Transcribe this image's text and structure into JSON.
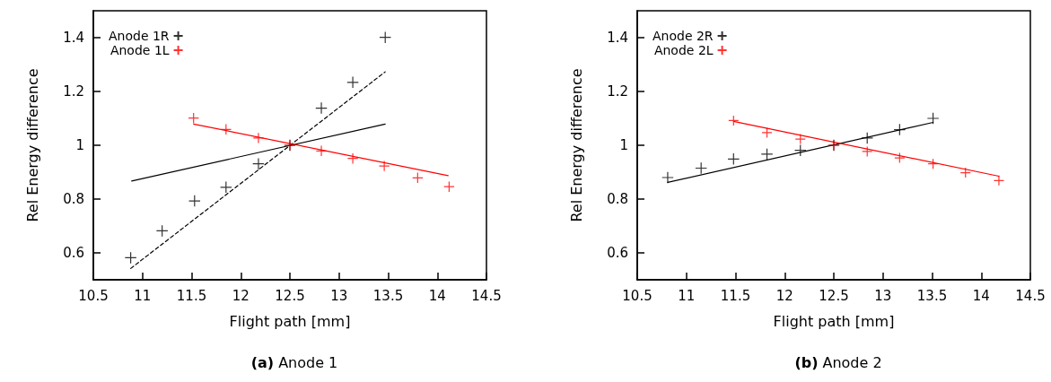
{
  "chart_data": [
    {
      "type": "scatter",
      "title": "(a) Anode 1",
      "xlabel": "Flight path [mm]",
      "ylabel": "Rel Energy difference",
      "xlim": [
        10.5,
        14.5
      ],
      "xticks": [
        10.5,
        11,
        11.5,
        12,
        12.5,
        13,
        13.5,
        14,
        14.5
      ],
      "ylim": [
        0.5,
        1.5
      ],
      "yticks": [
        0.6,
        0.8,
        1,
        1.2,
        1.4
      ],
      "grid": false,
      "legend": "top left",
      "series": [
        {
          "name": "Anode 1R",
          "marker": "cross",
          "color": "#000000",
          "x": [
            10.88,
            11.2,
            11.53,
            11.85,
            12.18,
            12.5,
            12.82,
            13.14,
            13.47
          ],
          "values": [
            0.582,
            0.682,
            0.793,
            0.844,
            0.931,
            1.0,
            1.138,
            1.234,
            1.401
          ]
        },
        {
          "name": "Anode 1L",
          "marker": "cross",
          "color": "#ff0000",
          "x": [
            11.52,
            11.85,
            12.18,
            12.5,
            12.82,
            13.14,
            13.46,
            13.8,
            14.12
          ],
          "values": [
            1.101,
            1.059,
            1.027,
            1.0,
            0.979,
            0.951,
            0.923,
            0.879,
            0.846
          ]
        },
        {
          "type": "line",
          "marker": "none",
          "color": "#000000",
          "line_style": "solid",
          "x": [
            10.89,
            13.47
          ],
          "values": [
            0.867,
            1.079
          ]
        },
        {
          "type": "line",
          "marker": "none",
          "color": "#000000",
          "line_style": "dashed",
          "x": [
            10.88,
            13.47
          ],
          "values": [
            0.542,
            1.273
          ]
        },
        {
          "type": "line",
          "marker": "none",
          "color": "#ff0000",
          "line_style": "solid",
          "x": [
            11.52,
            14.11
          ],
          "values": [
            1.079,
            0.887
          ]
        }
      ]
    },
    {
      "type": "scatter",
      "title": "(b) Anode 2",
      "xlabel": "Flight path [mm]",
      "ylabel": "Rel Energy difference",
      "xlim": [
        10.5,
        14.5
      ],
      "xticks": [
        10.5,
        11,
        11.5,
        12,
        12.5,
        13,
        13.5,
        14,
        14.5
      ],
      "ylim": [
        0.5,
        1.5
      ],
      "yticks": [
        0.6,
        0.8,
        1,
        1.2,
        1.4
      ],
      "grid": false,
      "legend": "top left",
      "series": [
        {
          "name": "Anode 2R",
          "marker": "cross",
          "color": "#000000",
          "x": [
            10.81,
            11.15,
            11.48,
            11.82,
            12.16,
            12.5,
            12.84,
            13.17,
            13.51
          ],
          "values": [
            0.88,
            0.915,
            0.949,
            0.967,
            0.981,
            1.0,
            1.027,
            1.058,
            1.1
          ]
        },
        {
          "name": "Anode 2L",
          "marker": "cross",
          "color": "#ff0000",
          "x": [
            11.48,
            11.82,
            12.16,
            12.5,
            12.84,
            13.17,
            13.51,
            13.84,
            14.18
          ],
          "values": [
            1.092,
            1.047,
            1.023,
            1.0,
            0.977,
            0.953,
            0.931,
            0.898,
            0.869
          ]
        },
        {
          "type": "line",
          "marker": "none",
          "color": "#000000",
          "line_style": "solid",
          "x": [
            10.81,
            13.51
          ],
          "values": [
            0.862,
            1.085
          ]
        },
        {
          "type": "line",
          "marker": "none",
          "color": "#ff0000",
          "line_style": "solid",
          "x": [
            11.48,
            14.18
          ],
          "values": [
            1.089,
            0.885
          ]
        }
      ]
    }
  ]
}
